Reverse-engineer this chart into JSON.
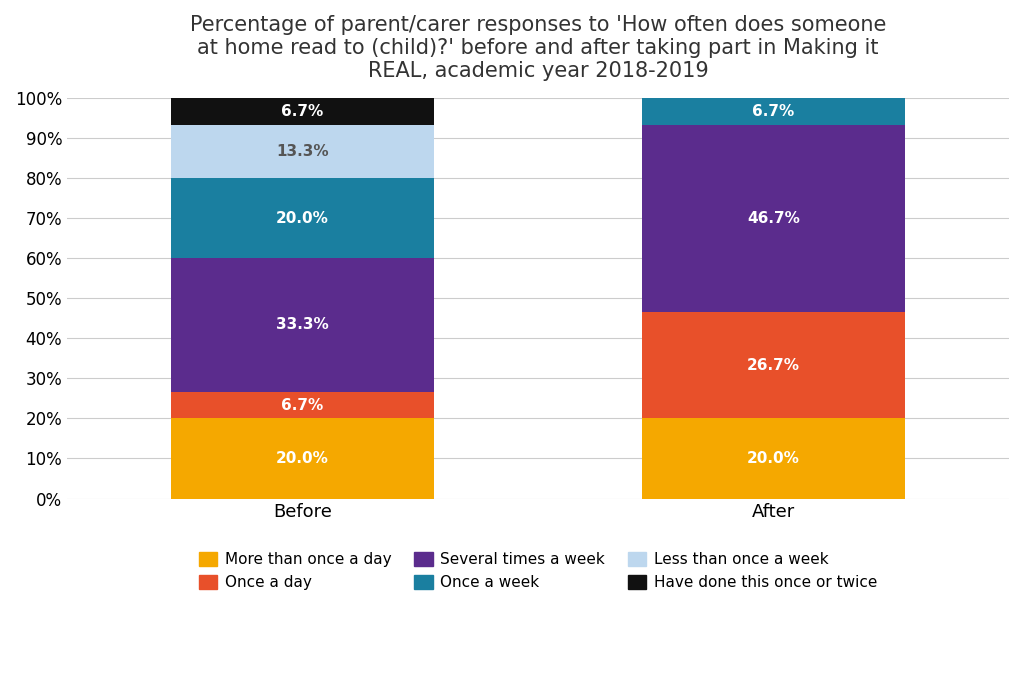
{
  "title": "Percentage of parent/carer responses to 'How often does someone\nat home read to (child)?' before and after taking part in Making it\nREAL, academic year 2018-2019",
  "categories": [
    "Before",
    "After"
  ],
  "series": [
    {
      "label": "More than once a day",
      "color": "#F5A800",
      "values": [
        20.0,
        20.0
      ]
    },
    {
      "label": "Once a day",
      "color": "#E8502A",
      "values": [
        6.7,
        26.7
      ]
    },
    {
      "label": "Several times a week",
      "color": "#5B2C8D",
      "values": [
        33.3,
        46.7
      ]
    },
    {
      "label": "Once a week",
      "color": "#1A7FA0",
      "values": [
        20.0,
        6.7
      ]
    },
    {
      "label": "Less than once a week",
      "color": "#BDD7EE",
      "values": [
        13.3,
        0.0
      ]
    },
    {
      "label": "Have done this once or twice",
      "color": "#111111",
      "values": [
        6.7,
        0.0
      ]
    }
  ],
  "ylim": [
    0,
    100
  ],
  "yticks": [
    0,
    10,
    20,
    30,
    40,
    50,
    60,
    70,
    80,
    90,
    100
  ],
  "ytick_labels": [
    "0%",
    "10%",
    "20%",
    "30%",
    "40%",
    "50%",
    "60%",
    "70%",
    "80%",
    "90%",
    "100%"
  ],
  "bar_width": 0.28,
  "x_positions": [
    0.25,
    0.75
  ],
  "xlim": [
    0.0,
    1.0
  ],
  "background_color": "#ffffff",
  "title_fontsize": 15,
  "legend_fontsize": 11,
  "tick_fontsize": 12,
  "label_fontsize": 11,
  "legend_order": [
    0,
    1,
    2,
    3,
    4,
    5
  ]
}
